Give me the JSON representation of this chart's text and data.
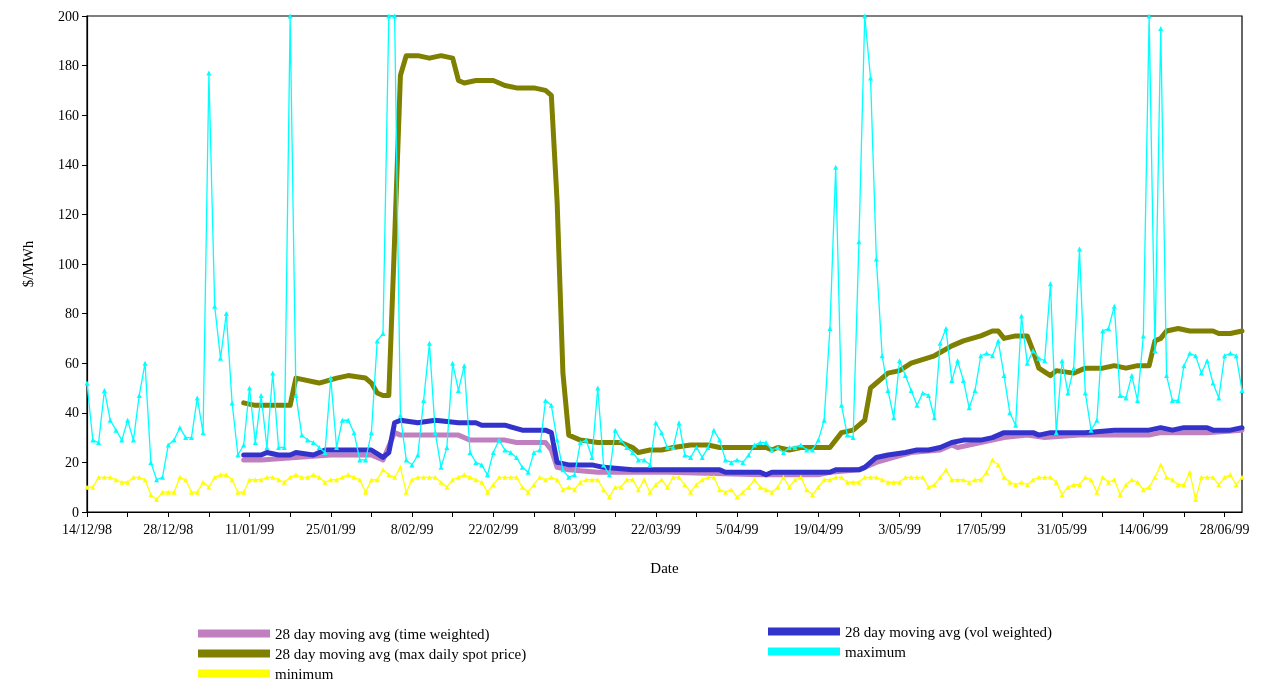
{
  "chart_data": {
    "type": "line",
    "xlabel": "Date",
    "ylabel": "$/MWh",
    "x": [
      "1998-12-14",
      "1998-12-15",
      "1998-12-16",
      "1998-12-17",
      "1998-12-18",
      "1998-12-19",
      "1998-12-20",
      "1998-12-21",
      "1998-12-22",
      "1998-12-23",
      "1998-12-24",
      "1998-12-25",
      "1998-12-26",
      "1998-12-27",
      "1998-12-28",
      "1998-12-29",
      "1998-12-30",
      "1998-12-31",
      "1999-01-01",
      "1999-01-02",
      "1999-01-03",
      "1999-01-04",
      "1999-01-05",
      "1999-01-06",
      "1999-01-07",
      "1999-01-08",
      "1999-01-09",
      "1999-01-10",
      "1999-01-11",
      "1999-01-12",
      "1999-01-13",
      "1999-01-14",
      "1999-01-15",
      "1999-01-16",
      "1999-01-17",
      "1999-01-18",
      "1999-01-19",
      "1999-01-20",
      "1999-01-21",
      "1999-01-22",
      "1999-01-23",
      "1999-01-24",
      "1999-01-25",
      "1999-01-26",
      "1999-01-27",
      "1999-01-28",
      "1999-01-29",
      "1999-01-30",
      "1999-01-31",
      "1999-02-01",
      "1999-02-02",
      "1999-02-03",
      "1999-02-04",
      "1999-02-05",
      "1999-02-06",
      "1999-02-07",
      "1999-02-08",
      "1999-02-09",
      "1999-02-10",
      "1999-02-11",
      "1999-02-12",
      "1999-02-13",
      "1999-02-14",
      "1999-02-15",
      "1999-02-16",
      "1999-02-17",
      "1999-02-18",
      "1999-02-19",
      "1999-02-20",
      "1999-02-21",
      "1999-02-22",
      "1999-02-23",
      "1999-02-24",
      "1999-02-25",
      "1999-02-26",
      "1999-02-27",
      "1999-02-28",
      "1999-03-01",
      "1999-03-02",
      "1999-03-03",
      "1999-03-04",
      "1999-03-05",
      "1999-03-06",
      "1999-03-07",
      "1999-03-08",
      "1999-03-09",
      "1999-03-10",
      "1999-03-11",
      "1999-03-12",
      "1999-03-13",
      "1999-03-14",
      "1999-03-15",
      "1999-03-16",
      "1999-03-17",
      "1999-03-18",
      "1999-03-19",
      "1999-03-20",
      "1999-03-21",
      "1999-03-22",
      "1999-03-23",
      "1999-03-24",
      "1999-03-25",
      "1999-03-26",
      "1999-03-27",
      "1999-03-28",
      "1999-03-29",
      "1999-03-30",
      "1999-03-31",
      "1999-04-01",
      "1999-04-02",
      "1999-04-03",
      "1999-04-04",
      "1999-04-05",
      "1999-04-06",
      "1999-04-07",
      "1999-04-08",
      "1999-04-09",
      "1999-04-10",
      "1999-04-11",
      "1999-04-12",
      "1999-04-13",
      "1999-04-14",
      "1999-04-15",
      "1999-04-16",
      "1999-04-17",
      "1999-04-18",
      "1999-04-19",
      "1999-04-20",
      "1999-04-21",
      "1999-04-22",
      "1999-04-23",
      "1999-04-24",
      "1999-04-25",
      "1999-04-26",
      "1999-04-27",
      "1999-04-28",
      "1999-04-29",
      "1999-04-30",
      "1999-05-01",
      "1999-05-02",
      "1999-05-03",
      "1999-05-04",
      "1999-05-05",
      "1999-05-06",
      "1999-05-07",
      "1999-05-08",
      "1999-05-09",
      "1999-05-10",
      "1999-05-11",
      "1999-05-12",
      "1999-05-13",
      "1999-05-14",
      "1999-05-15",
      "1999-05-16",
      "1999-05-17",
      "1999-05-18",
      "1999-05-19",
      "1999-05-20",
      "1999-05-21",
      "1999-05-22",
      "1999-05-23",
      "1999-05-24",
      "1999-05-25",
      "1999-05-26",
      "1999-05-27",
      "1999-05-28",
      "1999-05-29",
      "1999-05-30",
      "1999-05-31",
      "1999-06-01",
      "1999-06-02",
      "1999-06-03",
      "1999-06-04",
      "1999-06-05",
      "1999-06-06",
      "1999-06-07",
      "1999-06-08",
      "1999-06-09",
      "1999-06-10",
      "1999-06-11",
      "1999-06-12",
      "1999-06-13",
      "1999-06-14",
      "1999-06-15",
      "1999-06-16",
      "1999-06-17",
      "1999-06-18",
      "1999-06-19",
      "1999-06-20",
      "1999-06-21",
      "1999-06-22",
      "1999-06-23",
      "1999-06-24",
      "1999-06-25",
      "1999-06-26",
      "1999-06-27",
      "1999-06-28",
      "1999-06-29",
      "1999-06-30",
      "1999-07-01"
    ],
    "series": [
      {
        "name": "28 day moving avg (time weighted)",
        "color": "#c080c0",
        "marker": "none",
        "x": [
          "1999-01-10",
          "1999-01-13",
          "1999-01-19",
          "1999-01-25",
          "1999-02-01",
          "1999-02-03",
          "1999-02-05",
          "1999-02-06",
          "1999-02-11",
          "1999-02-16",
          "1999-02-18",
          "1999-02-24",
          "1999-02-26",
          "1999-03-03",
          "1999-03-04",
          "1999-03-05",
          "1999-03-07",
          "1999-03-12",
          "1999-03-19",
          "1999-03-24",
          "1999-04-09",
          "1999-04-19",
          "1999-04-21",
          "1999-04-26",
          "1999-04-29",
          "1999-05-02",
          "1999-05-05",
          "1999-05-10",
          "1999-05-12",
          "1999-05-13",
          "1999-05-17",
          "1999-05-21",
          "1999-05-25",
          "1999-05-28",
          "1999-06-03",
          "1999-06-09",
          "1999-06-14",
          "1999-06-15",
          "1999-06-17",
          "1999-06-25",
          "1999-07-01"
        ],
        "values": [
          21,
          21,
          22,
          23,
          23,
          21,
          32,
          31,
          31,
          31,
          29,
          29,
          28,
          28,
          25,
          18,
          17,
          16,
          16,
          16,
          15,
          15,
          16,
          17,
          20,
          22,
          24,
          25,
          27,
          26,
          28,
          30,
          31,
          30,
          31,
          31,
          31,
          31,
          32,
          32,
          33
        ]
      },
      {
        "name": "28 day moving avg (vol weighted)",
        "color": "#3333cc",
        "marker": "none",
        "x": [
          "1999-01-10",
          "1999-01-13",
          "1999-01-14",
          "1999-01-16",
          "1999-01-18",
          "1999-01-19",
          "1999-01-22",
          "1999-01-24",
          "1999-01-26",
          "1999-02-01",
          "1999-02-03",
          "1999-02-04",
          "1999-02-05",
          "1999-02-06",
          "1999-02-09",
          "1999-02-12",
          "1999-02-16",
          "1999-02-19",
          "1999-02-20",
          "1999-02-24",
          "1999-02-27",
          "1999-03-03",
          "1999-03-04",
          "1999-03-05",
          "1999-03-07",
          "1999-03-11",
          "1999-03-13",
          "1999-03-18",
          "1999-03-24",
          "1999-04-02",
          "1999-04-03",
          "1999-04-09",
          "1999-04-10",
          "1999-04-11",
          "1999-04-21",
          "1999-04-22",
          "1999-04-26",
          "1999-04-27",
          "1999-04-29",
          "1999-05-01",
          "1999-05-04",
          "1999-05-06",
          "1999-05-08",
          "1999-05-10",
          "1999-05-12",
          "1999-05-14",
          "1999-05-17",
          "1999-05-19",
          "1999-05-21",
          "1999-05-23",
          "1999-05-26",
          "1999-05-27",
          "1999-05-29",
          "1999-06-03",
          "1999-06-04",
          "1999-06-09",
          "1999-06-15",
          "1999-06-17",
          "1999-06-19",
          "1999-06-21",
          "1999-06-25",
          "1999-06-26",
          "1999-06-29",
          "1999-07-01"
        ],
        "values": [
          23,
          23,
          24,
          23,
          23,
          24,
          23,
          25,
          25,
          25,
          22,
          24,
          36,
          37,
          36,
          37,
          36,
          36,
          35,
          35,
          33,
          33,
          32,
          20,
          19,
          19,
          18,
          17,
          17,
          17,
          16,
          16,
          15,
          16,
          16,
          17,
          17,
          18,
          22,
          23,
          24,
          25,
          25,
          26,
          28,
          29,
          29,
          30,
          32,
          32,
          32,
          31,
          32,
          32,
          32,
          33,
          33,
          34,
          33,
          34,
          34,
          33,
          33,
          34
        ]
      },
      {
        "name": "28 day moving avg (max daily spot price)",
        "color": "#808000",
        "marker": "none",
        "x": [
          "1999-01-10",
          "1999-01-12",
          "1999-01-14",
          "1999-01-17",
          "1999-01-18",
          "1999-01-19",
          "1999-01-23",
          "1999-01-26",
          "1999-01-28",
          "1999-01-31",
          "1999-02-01",
          "1999-02-02",
          "1999-02-03",
          "1999-02-04",
          "1999-02-05",
          "1999-02-06",
          "1999-02-07",
          "1999-02-09",
          "1999-02-11",
          "1999-02-13",
          "1999-02-15",
          "1999-02-16",
          "1999-02-17",
          "1999-02-19",
          "1999-02-22",
          "1999-02-24",
          "1999-02-26",
          "1999-03-01",
          "1999-03-03",
          "1999-03-04",
          "1999-03-05",
          "1999-03-06",
          "1999-03-07",
          "1999-03-09",
          "1999-03-12",
          "1999-03-14",
          "1999-03-16",
          "1999-03-18",
          "1999-03-19",
          "1999-03-21",
          "1999-03-23",
          "1999-03-25",
          "1999-03-28",
          "1999-03-31",
          "1999-04-02",
          "1999-04-04",
          "1999-04-10",
          "1999-04-11",
          "1999-04-12",
          "1999-04-14",
          "1999-04-16",
          "1999-04-21",
          "1999-04-23",
          "1999-04-25",
          "1999-04-27",
          "1999-04-28",
          "1999-05-01",
          "1999-05-03",
          "1999-05-05",
          "1999-05-09",
          "1999-05-12",
          "1999-05-14",
          "1999-05-17",
          "1999-05-19",
          "1999-05-20",
          "1999-05-21",
          "1999-05-23",
          "1999-05-25",
          "1999-05-26",
          "1999-05-27",
          "1999-05-29",
          "1999-05-30",
          "1999-06-02",
          "1999-06-04",
          "1999-06-06",
          "1999-06-07",
          "1999-06-09",
          "1999-06-11",
          "1999-06-13",
          "1999-06-15",
          "1999-06-16",
          "1999-06-17",
          "1999-06-18",
          "1999-06-20",
          "1999-06-22",
          "1999-06-26",
          "1999-06-27",
          "1999-06-29",
          "1999-07-01"
        ],
        "values": [
          44,
          43,
          43,
          43,
          43,
          54,
          52,
          54,
          55,
          54,
          52,
          48,
          47,
          47,
          110,
          176,
          184,
          184,
          183,
          184,
          183,
          174,
          173,
          174,
          174,
          172,
          171,
          171,
          170,
          168,
          125,
          56,
          31,
          29,
          28,
          28,
          28,
          26,
          24,
          25,
          25,
          26,
          27,
          27,
          26,
          26,
          26,
          25,
          26,
          25,
          26,
          26,
          32,
          33,
          37,
          50,
          56,
          57,
          60,
          63,
          67,
          69,
          71,
          73,
          73,
          70,
          71,
          71,
          65,
          58,
          55,
          57,
          56,
          58,
          58,
          58,
          59,
          58,
          59,
          59,
          69,
          70,
          73,
          74,
          73,
          73,
          72,
          72,
          73
        ]
      },
      {
        "name": "maximum",
        "color": "#00ffff",
        "marker": "triangle",
        "values": [
          52,
          29,
          28,
          49,
          37,
          33,
          29,
          37,
          29,
          47,
          60,
          20,
          13,
          14,
          27,
          29,
          34,
          30,
          30,
          46,
          32,
          177,
          83,
          62,
          80,
          44,
          23,
          27,
          50,
          28,
          47,
          26,
          56,
          26,
          26,
          200,
          47,
          31,
          29,
          28,
          26,
          24,
          54,
          26,
          37,
          37,
          32,
          21,
          21,
          32,
          69,
          72,
          200,
          200,
          39,
          21,
          19,
          23,
          45,
          68,
          32,
          18,
          26,
          60,
          49,
          59,
          24,
          20,
          19,
          15,
          24,
          29,
          25,
          24,
          22,
          18,
          16,
          24,
          25,
          45,
          43,
          29,
          17,
          14,
          15,
          28,
          29,
          22,
          50,
          19,
          15,
          33,
          29,
          26,
          24,
          21,
          21,
          19,
          36,
          32,
          26,
          26,
          36,
          23,
          22,
          26,
          22,
          26,
          33,
          29,
          21,
          20,
          21,
          20,
          23,
          27,
          28,
          28,
          25,
          26,
          24,
          26,
          26,
          27,
          25,
          25,
          29,
          37,
          74,
          139,
          43,
          31,
          30,
          109,
          200,
          175,
          102,
          63,
          49,
          38,
          61,
          55,
          49,
          43,
          48,
          47,
          38,
          68,
          74,
          53,
          61,
          53,
          42,
          49,
          63,
          64,
          63,
          69,
          55,
          40,
          35,
          79,
          60,
          65,
          62,
          61,
          92,
          32,
          61,
          48,
          58,
          106,
          48,
          33,
          37,
          73,
          74,
          83,
          47,
          46,
          55,
          45,
          71,
          200,
          65,
          195,
          55,
          45,
          45,
          59,
          64,
          63,
          56,
          61,
          52,
          46,
          63,
          64,
          63,
          49
        ]
      },
      {
        "name": "minimum",
        "color": "#ffff00",
        "marker": "triangle",
        "values": [
          10,
          10,
          14,
          14,
          14,
          13,
          12,
          12,
          14,
          14,
          13,
          7,
          5,
          8,
          8,
          8,
          14,
          13,
          8,
          8,
          12,
          10,
          14,
          15,
          15,
          13,
          8,
          8,
          13,
          13,
          13,
          14,
          14,
          13,
          12,
          14,
          15,
          14,
          14,
          15,
          14,
          12,
          13,
          13,
          14,
          15,
          14,
          13,
          8,
          13,
          13,
          17,
          15,
          14,
          18,
          8,
          13,
          14,
          14,
          14,
          14,
          12,
          10,
          13,
          14,
          15,
          14,
          13,
          12,
          8,
          11,
          14,
          14,
          14,
          14,
          10,
          8,
          11,
          14,
          13,
          14,
          13,
          9,
          10,
          9,
          12,
          13,
          13,
          13,
          9,
          6,
          10,
          10,
          13,
          13,
          9,
          13,
          8,
          11,
          13,
          10,
          14,
          14,
          11,
          8,
          11,
          13,
          14,
          14,
          9,
          8,
          9,
          6,
          8,
          10,
          13,
          10,
          9,
          8,
          10,
          14,
          10,
          13,
          14,
          9,
          7,
          10,
          13,
          13,
          14,
          14,
          12,
          12,
          12,
          14,
          14,
          14,
          13,
          12,
          12,
          12,
          14,
          14,
          14,
          14,
          10,
          11,
          14,
          17,
          13,
          13,
          13,
          12,
          13,
          13,
          16,
          21,
          19,
          14,
          12,
          11,
          12,
          11,
          13,
          14,
          14,
          14,
          12,
          7,
          10,
          11,
          11,
          14,
          13,
          8,
          14,
          12,
          13,
          7,
          11,
          13,
          12,
          9,
          10,
          14,
          19,
          14,
          13,
          11,
          11,
          16,
          5,
          14,
          14,
          14,
          11,
          14,
          15,
          11,
          14
        ]
      }
    ],
    "xlim": [
      "1998-12-14",
      "1999-07-01"
    ],
    "xticks": [
      {
        "value": "1998-12-14",
        "label": "14/12/98"
      },
      {
        "value": "1998-12-21",
        "label": null
      },
      {
        "value": "1998-12-28",
        "label": "28/12/98"
      },
      {
        "value": "1999-01-04",
        "label": null
      },
      {
        "value": "1999-01-11",
        "label": "11/01/99"
      },
      {
        "value": "1999-01-18",
        "label": null
      },
      {
        "value": "1999-01-25",
        "label": "25/01/99"
      },
      {
        "value": "1999-02-01",
        "label": null
      },
      {
        "value": "1999-02-08",
        "label": "8/02/99"
      },
      {
        "value": "1999-02-15",
        "label": null
      },
      {
        "value": "1999-02-22",
        "label": "22/02/99"
      },
      {
        "value": "1999-03-01",
        "label": null
      },
      {
        "value": "1999-03-08",
        "label": "8/03/99"
      },
      {
        "value": "1999-03-15",
        "label": null
      },
      {
        "value": "1999-03-22",
        "label": "22/03/99"
      },
      {
        "value": "1999-03-29",
        "label": null
      },
      {
        "value": "1999-04-05",
        "label": "5/04/99"
      },
      {
        "value": "1999-04-12",
        "label": null
      },
      {
        "value": "1999-04-19",
        "label": "19/04/99"
      },
      {
        "value": "1999-04-26",
        "label": null
      },
      {
        "value": "1999-05-03",
        "label": "3/05/99"
      },
      {
        "value": "1999-05-10",
        "label": null
      },
      {
        "value": "1999-05-17",
        "label": "17/05/99"
      },
      {
        "value": "1999-05-24",
        "label": null
      },
      {
        "value": "1999-05-31",
        "label": "31/05/99"
      },
      {
        "value": "1999-06-07",
        "label": null
      },
      {
        "value": "1999-06-14",
        "label": "14/06/99"
      },
      {
        "value": "1999-06-21",
        "label": null
      },
      {
        "value": "1999-06-28",
        "label": "28/06/99"
      }
    ],
    "ylim": [
      0,
      200
    ],
    "yticks": [
      0,
      20,
      40,
      60,
      80,
      100,
      120,
      140,
      160,
      180,
      200
    ],
    "grid": false,
    "legend": "bottom"
  }
}
